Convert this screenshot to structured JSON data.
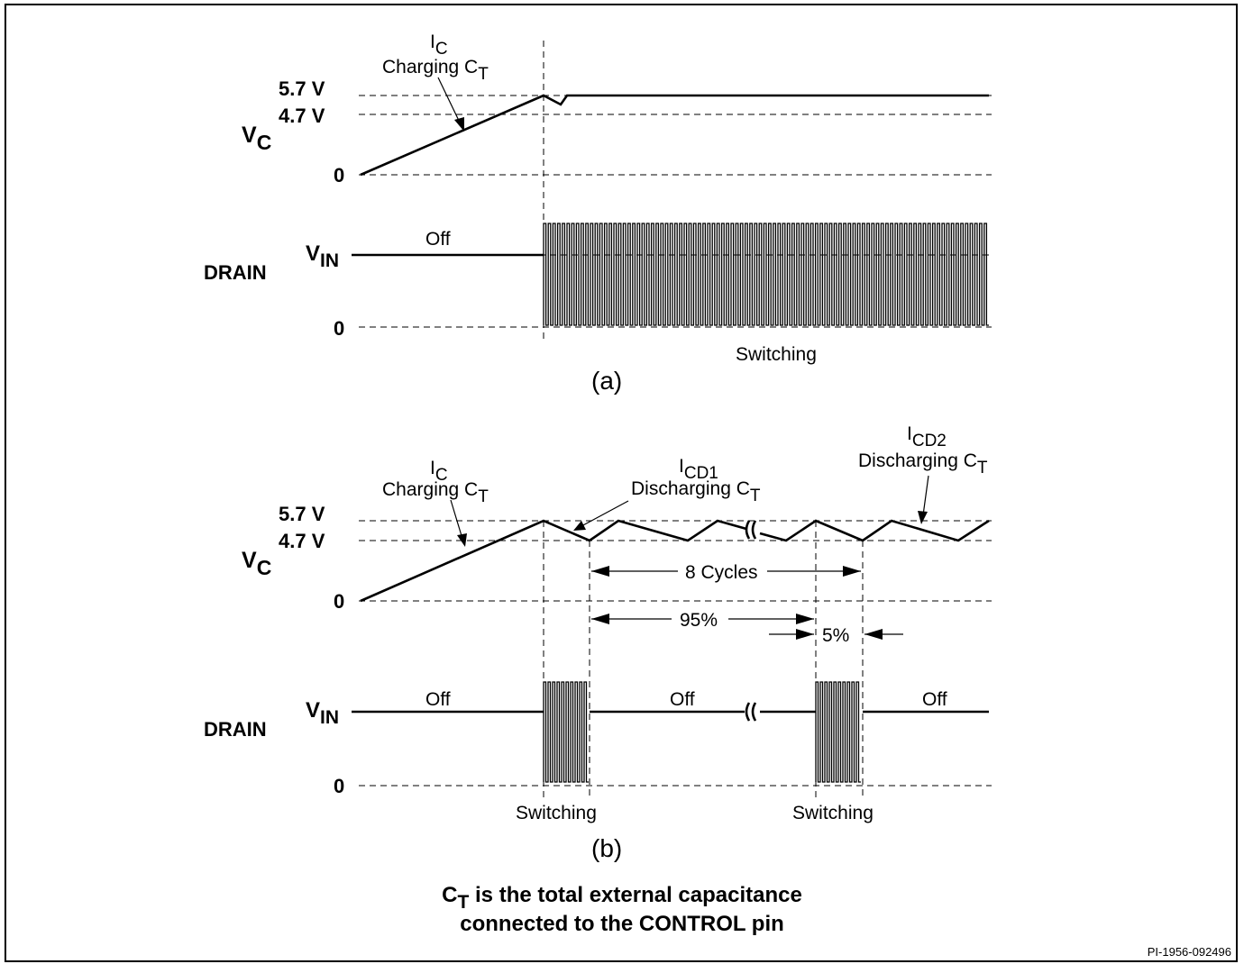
{
  "panel_a": {
    "caption": "(a)",
    "vc_label_main": "V",
    "vc_label_sub": "C",
    "level_5_7": "5.7 V",
    "level_4_7": "4.7 V",
    "level_0_vc": "0",
    "ic_main": "I",
    "ic_sub": "C",
    "charging_text": "Charging C",
    "charging_sub": "T",
    "drain_label": "DRAIN",
    "vin_main": "V",
    "vin_sub": "IN",
    "level_0_drain": "0",
    "off_label": "Off",
    "switching_label": "Switching"
  },
  "panel_b": {
    "caption": "(b)",
    "vc_label_main": "V",
    "vc_label_sub": "C",
    "level_5_7": "5.7 V",
    "level_4_7": "4.7 V",
    "level_0_vc": "0",
    "ic_main": "I",
    "ic_sub": "C",
    "charging_text": "Charging C",
    "charging_sub": "T",
    "icd1_main": "I",
    "icd1_sub": "CD1",
    "discharging1_text": "Discharging C",
    "discharging1_sub": "T",
    "icd2_main": "I",
    "icd2_sub": "CD2",
    "discharging2_text": "Discharging C",
    "discharging2_sub": "T",
    "cycles_label": "8 Cycles",
    "pct95_label": "95%",
    "pct5_label": "5%",
    "drain_label": "DRAIN",
    "vin_main": "V",
    "vin_sub": "IN",
    "level_0_drain": "0",
    "off_1": "Off",
    "off_2": "Off",
    "off_3": "Off",
    "switching_1": "Switching",
    "switching_2": "Switching"
  },
  "footnote": {
    "ct_main": "C",
    "ct_sub": "T",
    "line1_rest": " is the total external capacitance",
    "line2": "connected to the CONTROL pin"
  },
  "figure_id": "PI-1956-092496"
}
